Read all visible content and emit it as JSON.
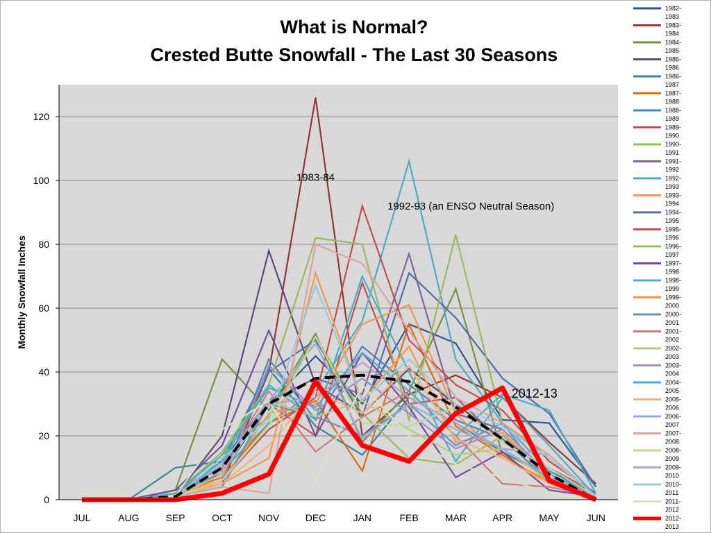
{
  "chart_data": {
    "type": "line",
    "title": "What is Normal?",
    "subtitle": "Crested Butte Snowfall - The Last 30 Seasons",
    "xlabel": "",
    "ylabel": "Monthly Snowfall Inches",
    "categories": [
      "JUL",
      "AUG",
      "SEP",
      "OCT",
      "NOV",
      "DEC",
      "JAN",
      "FEB",
      "MAR",
      "APR",
      "MAY",
      "JUN"
    ],
    "ylim": [
      0,
      130
    ],
    "yticks": [
      0,
      20,
      40,
      60,
      80,
      100,
      120
    ],
    "grid": true,
    "legend_position": "right",
    "series": [
      {
        "name": "1982-1983",
        "color": "#2f5597",
        "values": [
          0,
          0,
          2,
          8,
          30,
          45,
          30,
          55,
          49,
          25,
          24,
          4
        ]
      },
      {
        "name": "1983-1984",
        "color": "#943634",
        "values": [
          0,
          0,
          1,
          5,
          40,
          126,
          20,
          33,
          39,
          32,
          18,
          5
        ]
      },
      {
        "name": "1984-1985",
        "color": "#76923c",
        "values": [
          0,
          0,
          3,
          44,
          28,
          52,
          18,
          34,
          66,
          14,
          5,
          1
        ]
      },
      {
        "name": "1985-1986",
        "color": "#5f497a",
        "values": [
          0,
          0,
          1,
          20,
          78,
          36,
          27,
          41,
          30,
          19,
          9,
          2
        ]
      },
      {
        "name": "1986-1987",
        "color": "#31859c",
        "values": [
          0,
          0,
          10,
          12,
          41,
          23,
          14,
          32,
          24,
          15,
          7,
          1
        ]
      },
      {
        "name": "1987-1988",
        "color": "#e36c09",
        "values": [
          0,
          0,
          2,
          7,
          24,
          31,
          9,
          55,
          23,
          14,
          5,
          1
        ]
      },
      {
        "name": "1988-1989",
        "color": "#4f81bd",
        "values": [
          0,
          0,
          1,
          6,
          44,
          25,
          48,
          36,
          25,
          19,
          6,
          1
        ]
      },
      {
        "name": "1989-1990",
        "color": "#c0504d",
        "values": [
          0,
          0,
          1,
          4,
          30,
          20,
          68,
          30,
          32,
          18,
          10,
          2
        ]
      },
      {
        "name": "1990-1991",
        "color": "#9bbb59",
        "values": [
          0,
          0,
          2,
          14,
          26,
          51,
          27,
          13,
          11,
          20,
          9,
          1
        ]
      },
      {
        "name": "1991-1992",
        "color": "#8064a2",
        "values": [
          0,
          0,
          2,
          12,
          31,
          38,
          33,
          77,
          27,
          22,
          8,
          1
        ]
      },
      {
        "name": "1992-1993",
        "color": "#4bacc6",
        "values": [
          0,
          0,
          1,
          9,
          24,
          34,
          56,
          106,
          44,
          24,
          9,
          1
        ]
      },
      {
        "name": "1993-1994",
        "color": "#f79646",
        "values": [
          0,
          0,
          2,
          6,
          27,
          30,
          55,
          61,
          27,
          13,
          6,
          1
        ]
      },
      {
        "name": "1994-1995",
        "color": "#4f6fab",
        "values": [
          0,
          0,
          3,
          8,
          40,
          50,
          26,
          71,
          57,
          38,
          27,
          4
        ]
      },
      {
        "name": "1995-1996",
        "color": "#c0504d",
        "values": [
          0,
          0,
          1,
          6,
          22,
          32,
          92,
          50,
          36,
          28,
          12,
          2
        ]
      },
      {
        "name": "1996-1997",
        "color": "#9bbb59",
        "values": [
          0,
          0,
          2,
          15,
          36,
          82,
          80,
          25,
          83,
          24,
          13,
          1
        ]
      },
      {
        "name": "1997-1998",
        "color": "#6f4f9f",
        "values": [
          0,
          0,
          3,
          17,
          53,
          20,
          46,
          29,
          7,
          15,
          3,
          1
        ]
      },
      {
        "name": "1998-1999",
        "color": "#4bacc6",
        "values": [
          0,
          0,
          1,
          12,
          36,
          25,
          70,
          40,
          12,
          32,
          17,
          1
        ]
      },
      {
        "name": "1999-2000",
        "color": "#f79646",
        "values": [
          0,
          0,
          2,
          5,
          13,
          71,
          31,
          48,
          18,
          21,
          7,
          1
        ]
      },
      {
        "name": "2000-2001",
        "color": "#6a8cc7",
        "values": [
          0,
          0,
          1,
          4,
          30,
          26,
          20,
          30,
          17,
          24,
          5,
          1
        ]
      },
      {
        "name": "2001-2002",
        "color": "#d07a78",
        "values": [
          0,
          0,
          2,
          10,
          34,
          15,
          26,
          34,
          20,
          5,
          4,
          1
        ]
      },
      {
        "name": "2002-2003",
        "color": "#b5cc7c",
        "values": [
          0,
          0,
          1,
          8,
          31,
          26,
          31,
          22,
          14,
          16,
          6,
          1
        ]
      },
      {
        "name": "2003-2004",
        "color": "#a08cbf",
        "values": [
          0,
          0,
          1,
          6,
          42,
          28,
          38,
          27,
          16,
          22,
          8,
          1
        ]
      },
      {
        "name": "2004-2005",
        "color": "#4bacc6",
        "values": [
          0,
          0,
          2,
          14,
          35,
          29,
          46,
          34,
          20,
          33,
          28,
          2
        ]
      },
      {
        "name": "2005-2006",
        "color": "#fab07a",
        "values": [
          0,
          0,
          1,
          5,
          17,
          34,
          27,
          42,
          19,
          13,
          5,
          1
        ]
      },
      {
        "name": "2006-2007",
        "color": "#95a9d6",
        "values": [
          0,
          0,
          1,
          11,
          31,
          49,
          19,
          30,
          22,
          16,
          14,
          1
        ]
      },
      {
        "name": "2007-2008",
        "color": "#dba3a2",
        "values": [
          0,
          0,
          1,
          4,
          2,
          80,
          74,
          53,
          32,
          24,
          14,
          1
        ]
      },
      {
        "name": "2008-2009",
        "color": "#c3d69b",
        "values": [
          0,
          0,
          1,
          6,
          23,
          51,
          24,
          23,
          29,
          18,
          10,
          1
        ]
      },
      {
        "name": "2009-2010",
        "color": "#b3a2c7",
        "values": [
          0,
          0,
          1,
          9,
          30,
          32,
          43,
          32,
          24,
          16,
          7,
          1
        ]
      },
      {
        "name": "2010-2011",
        "color": "#93cddd",
        "values": [
          0,
          0,
          1,
          13,
          25,
          67,
          31,
          44,
          30,
          23,
          13,
          1
        ]
      },
      {
        "name": "2011-2012",
        "color": "#d7e4bd",
        "values": [
          0,
          0,
          1,
          22,
          31,
          6,
          36,
          20,
          11,
          7,
          2,
          0
        ]
      },
      {
        "name": "2012-2013",
        "color": "#ff0000",
        "values": [
          0,
          0,
          0,
          2,
          8,
          37,
          17,
          12,
          27,
          35,
          6,
          0
        ]
      }
    ],
    "average": {
      "color": "#000000",
      "style": "dashed",
      "values": [
        0,
        0,
        1,
        10,
        30,
        38,
        39,
        37,
        29,
        19,
        8,
        0
      ]
    },
    "annotations": [
      {
        "text": "1983-84",
        "x": "DEC",
        "y": 101
      },
      {
        "text": "1992-93 (an ENSO Neutral Season)",
        "x": "FEB",
        "y": 92
      },
      {
        "text": "2012-13",
        "x": "APR",
        "y": 33
      }
    ]
  }
}
